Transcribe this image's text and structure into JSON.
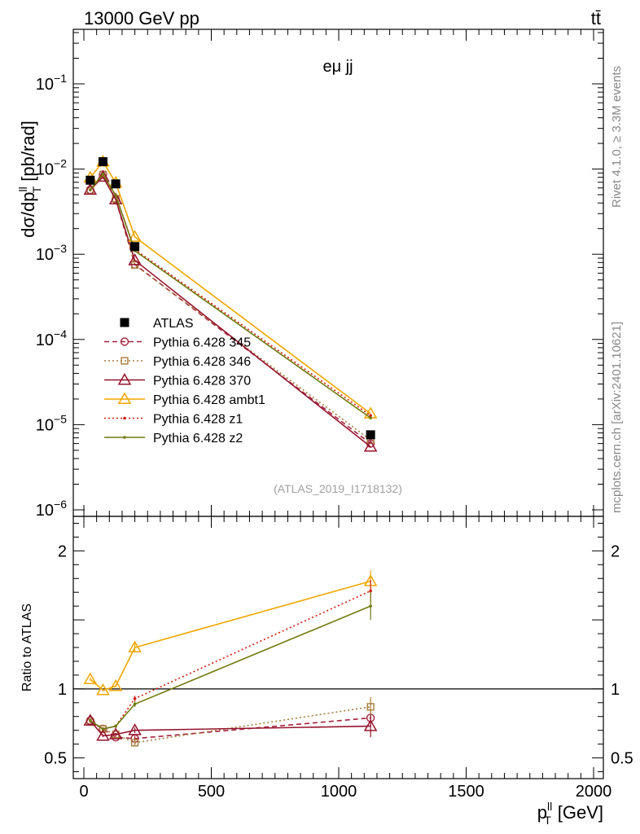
{
  "header": {
    "left": "13000 GeV pp",
    "right": "tt̄"
  },
  "side_text": {
    "upper": "Rivet 4.1.0, ≥ 3.3M events",
    "lower": "mcplots.cern.ch [arXiv:2401.10621]"
  },
  "chart_data": {
    "type": "line",
    "title": "eμ jj",
    "analysis_id": "(ATLAS_2019_I1718132)",
    "xlabel_main": "p",
    "xlabel_sup": "ll",
    "xlabel_sub": "T",
    "xlabel_unit": "[GeV]",
    "ylabel_main": "dσ/dp",
    "ylabel_sup": "ll",
    "ylabel_sub": "T",
    "ylabel_unit": "[pb/rad]",
    "ratio_ylabel": "Ratio to ATLAS",
    "xlim": [
      0,
      2000
    ],
    "ylim_main": [
      1e-06,
      0.4
    ],
    "yscale_main": "log",
    "ylim_ratio": [
      0.35,
      2.25
    ],
    "x_ticks": [
      "0",
      "500",
      "1000",
      "1500",
      "2000"
    ],
    "y_ticks_main": [
      {
        "mant": "10",
        "exp": "−6"
      },
      {
        "mant": "10",
        "exp": "−5"
      },
      {
        "mant": "10",
        "exp": "−4"
      },
      {
        "mant": "10",
        "exp": "−3"
      },
      {
        "mant": "10",
        "exp": "−2"
      },
      {
        "mant": "10",
        "exp": "−1"
      }
    ],
    "y_ticks_ratio": [
      "0.5",
      "1",
      "2"
    ],
    "x": [
      25,
      75,
      125,
      200,
      1125
    ],
    "data": {
      "name": "ATLAS",
      "values": [
        0.0074,
        0.0122,
        0.0067,
        0.00123,
        7.6e-06
      ]
    },
    "series": [
      {
        "name": "Pythia 6.428 345",
        "color": "#a3223f",
        "marker": "circle",
        "dash": "6,4",
        "values": [
          0.0057,
          0.0086,
          0.0044,
          0.00076,
          6e-06
        ],
        "ratio": [
          0.77,
          0.71,
          0.65,
          0.64,
          0.79
        ],
        "ratio_err": [
          0.01,
          0.01,
          0.01,
          0.02,
          0.06
        ]
      },
      {
        "name": "Pythia 6.428 346",
        "color": "#a87c3a",
        "marker": "square",
        "dash": "2,3",
        "values": [
          0.0056,
          0.0086,
          0.0045,
          0.00075,
          6.6e-06
        ],
        "ratio": [
          0.76,
          0.71,
          0.67,
          0.61,
          0.87
        ],
        "ratio_err": [
          0.01,
          0.01,
          0.01,
          0.02,
          0.07
        ]
      },
      {
        "name": "Pythia 6.428 370",
        "color": "#96142d",
        "marker": "triangle",
        "dash": "",
        "values": [
          0.0057,
          0.0081,
          0.0044,
          0.00085,
          5.5e-06
        ],
        "ratio": [
          0.77,
          0.66,
          0.67,
          0.7,
          0.73
        ],
        "ratio_err": [
          0.01,
          0.01,
          0.01,
          0.02,
          0.08
        ]
      },
      {
        "name": "Pythia 6.428 ambt1",
        "color": "#f0a600",
        "marker": "triangle",
        "dash": "",
        "values": [
          0.0079,
          0.0122,
          0.0069,
          0.0016,
          1.35e-05
        ],
        "ratio": [
          1.07,
          0.99,
          1.02,
          1.3,
          1.78
        ],
        "ratio_err": [
          0.01,
          0.01,
          0.01,
          0.03,
          0.08
        ]
      },
      {
        "name": "Pythia 6.428 z1",
        "color": "#d11e0f",
        "marker": "dot",
        "dash": "2,3",
        "values": [
          0.0057,
          0.0087,
          0.0049,
          0.00114,
          1.28e-05
        ],
        "ratio": [
          0.77,
          0.71,
          0.73,
          0.93,
          1.71
        ],
        "ratio_err": [
          0.01,
          0.01,
          0.01,
          0.02,
          0.08
        ]
      },
      {
        "name": "Pythia 6.428 z2",
        "color": "#717a0f",
        "marker": "dot",
        "dash": "",
        "values": [
          0.0057,
          0.0087,
          0.0049,
          0.0011,
          1.2e-05
        ],
        "ratio": [
          0.77,
          0.71,
          0.73,
          0.89,
          1.6
        ],
        "ratio_err": [
          0.01,
          0.01,
          0.01,
          0.02,
          0.1
        ]
      }
    ]
  }
}
